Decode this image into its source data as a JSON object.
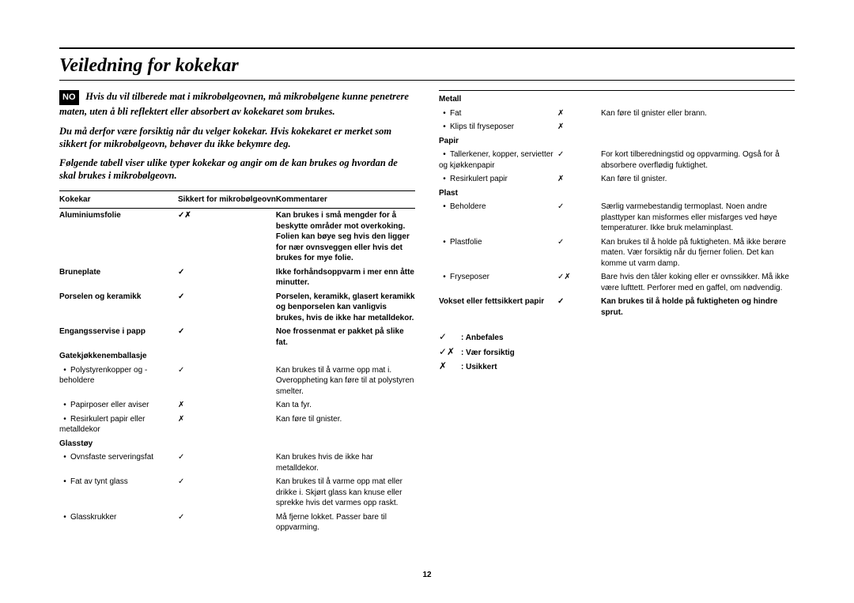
{
  "lang_badge": "NO",
  "title": "Veiledning for kokekar",
  "intro": [
    "Hvis du vil tilberede mat i mikrobølgeovnen, må mikrobølgene kunne penetrere maten, uten å bli reflektert eller absorbert av kokekaret som brukes.",
    "Du må derfor være forsiktig når du velger kokekar. Hvis kokekaret er merket som sikkert for mikrobølgeovn, behøver du ikke bekymre deg.",
    "Følgende tabell viser ulike typer kokekar og angir om de kan brukes og hvordan de skal brukes i mikrobølgeovn."
  ],
  "headers": {
    "col1": "Kokekar",
    "col2": "Sikkert for mikrobølgeovn",
    "col3": "Kommentarer"
  },
  "symbols": {
    "ok": "✓",
    "bad": "✗",
    "both": "✓✗"
  },
  "left_rows": [
    {
      "type": "cat",
      "label": "Aluminiumsfolie",
      "safe": "both",
      "comment": "Kan brukes i små mengder for å beskytte områder mot overkoking. Folien kan bøye seg hvis den ligger for nær ovnsveggen eller hvis det brukes for mye folie."
    },
    {
      "type": "cat",
      "label": "Bruneplate",
      "safe": "ok",
      "comment": "Ikke forhåndsoppvarm i mer enn åtte minutter."
    },
    {
      "type": "cat",
      "label": "Porselen og keramikk",
      "safe": "ok",
      "comment": "Porselen, keramikk, glasert keramikk og benporselen kan vanligvis brukes, hvis de ikke har metalldekor."
    },
    {
      "type": "cat",
      "label": "Engangsservise i papp",
      "safe": "ok",
      "comment": "Noe frossenmat er pakket på slike fat."
    },
    {
      "type": "cat",
      "label": "Gatekjøkkenemballasje",
      "safe": "",
      "comment": ""
    },
    {
      "type": "item",
      "label": "Polystyrenkopper og -beholdere",
      "safe": "ok",
      "comment": "Kan brukes til å varme opp mat i. Overoppheting kan føre til at polystyren smelter."
    },
    {
      "type": "item",
      "label": "Papirposer eller aviser",
      "safe": "bad",
      "comment": "Kan ta fyr."
    },
    {
      "type": "item",
      "label": "Resirkulert papir eller metalldekor",
      "safe": "bad",
      "comment": "Kan føre til gnister."
    },
    {
      "type": "cat",
      "label": "Glasstøy",
      "safe": "",
      "comment": ""
    },
    {
      "type": "item",
      "label": "Ovnsfaste serveringsfat",
      "safe": "ok",
      "comment": "Kan brukes hvis de ikke har metalldekor."
    },
    {
      "type": "item",
      "label": "Fat av tynt glass",
      "safe": "ok",
      "comment": "Kan brukes til å varme opp mat eller drikke i. Skjørt glass kan knuse eller sprekke hvis det varmes opp raskt."
    },
    {
      "type": "item",
      "label": "Glasskrukker",
      "safe": "ok",
      "comment": "Må fjerne lokket. Passer bare til oppvarming."
    }
  ],
  "right_rows": [
    {
      "type": "cat",
      "label": "Metall",
      "safe": "",
      "comment": ""
    },
    {
      "type": "item",
      "label": "Fat",
      "safe": "bad",
      "comment": "Kan føre til gnister eller brann."
    },
    {
      "type": "item",
      "label": "Klips til fryseposer",
      "safe": "bad",
      "comment": ""
    },
    {
      "type": "cat",
      "label": "Papir",
      "safe": "",
      "comment": ""
    },
    {
      "type": "item",
      "label": "Tallerkener, kopper, servietter og kjøkkenpapir",
      "safe": "ok",
      "comment": "For kort tilberedningstid og oppvarming. Også for å absorbere overflødig fuktighet."
    },
    {
      "type": "item",
      "label": "Resirkulert papir",
      "safe": "bad",
      "comment": "Kan føre til gnister."
    },
    {
      "type": "cat",
      "label": "Plast",
      "safe": "",
      "comment": ""
    },
    {
      "type": "item",
      "label": "Beholdere",
      "safe": "ok",
      "comment": "Særlig varmebestandig termoplast. Noen andre plasttyper kan misformes eller misfarges ved høye temperaturer. Ikke bruk melaminplast."
    },
    {
      "type": "item",
      "label": "Plastfolie",
      "safe": "ok",
      "comment": "Kan brukes til å holde på fuktigheten. Må ikke berøre maten. Vær forsiktig når du fjerner folien. Det kan komme ut varm damp."
    },
    {
      "type": "item",
      "label": "Fryseposer",
      "safe": "both",
      "comment": "Bare hvis den tåler koking eller er ovnssikker. Må ikke være lufttett. Perforer med en gaffel, om nødvendig."
    },
    {
      "type": "cat",
      "label": "Vokset eller fettsikkert papir",
      "safe": "ok",
      "comment": "Kan brukes til å holde på fuktigheten og hindre sprut."
    }
  ],
  "legend": {
    "ok": ": Anbefales",
    "both": ": Vær forsiktig",
    "bad": ": Usikkert"
  },
  "page_num": "12"
}
